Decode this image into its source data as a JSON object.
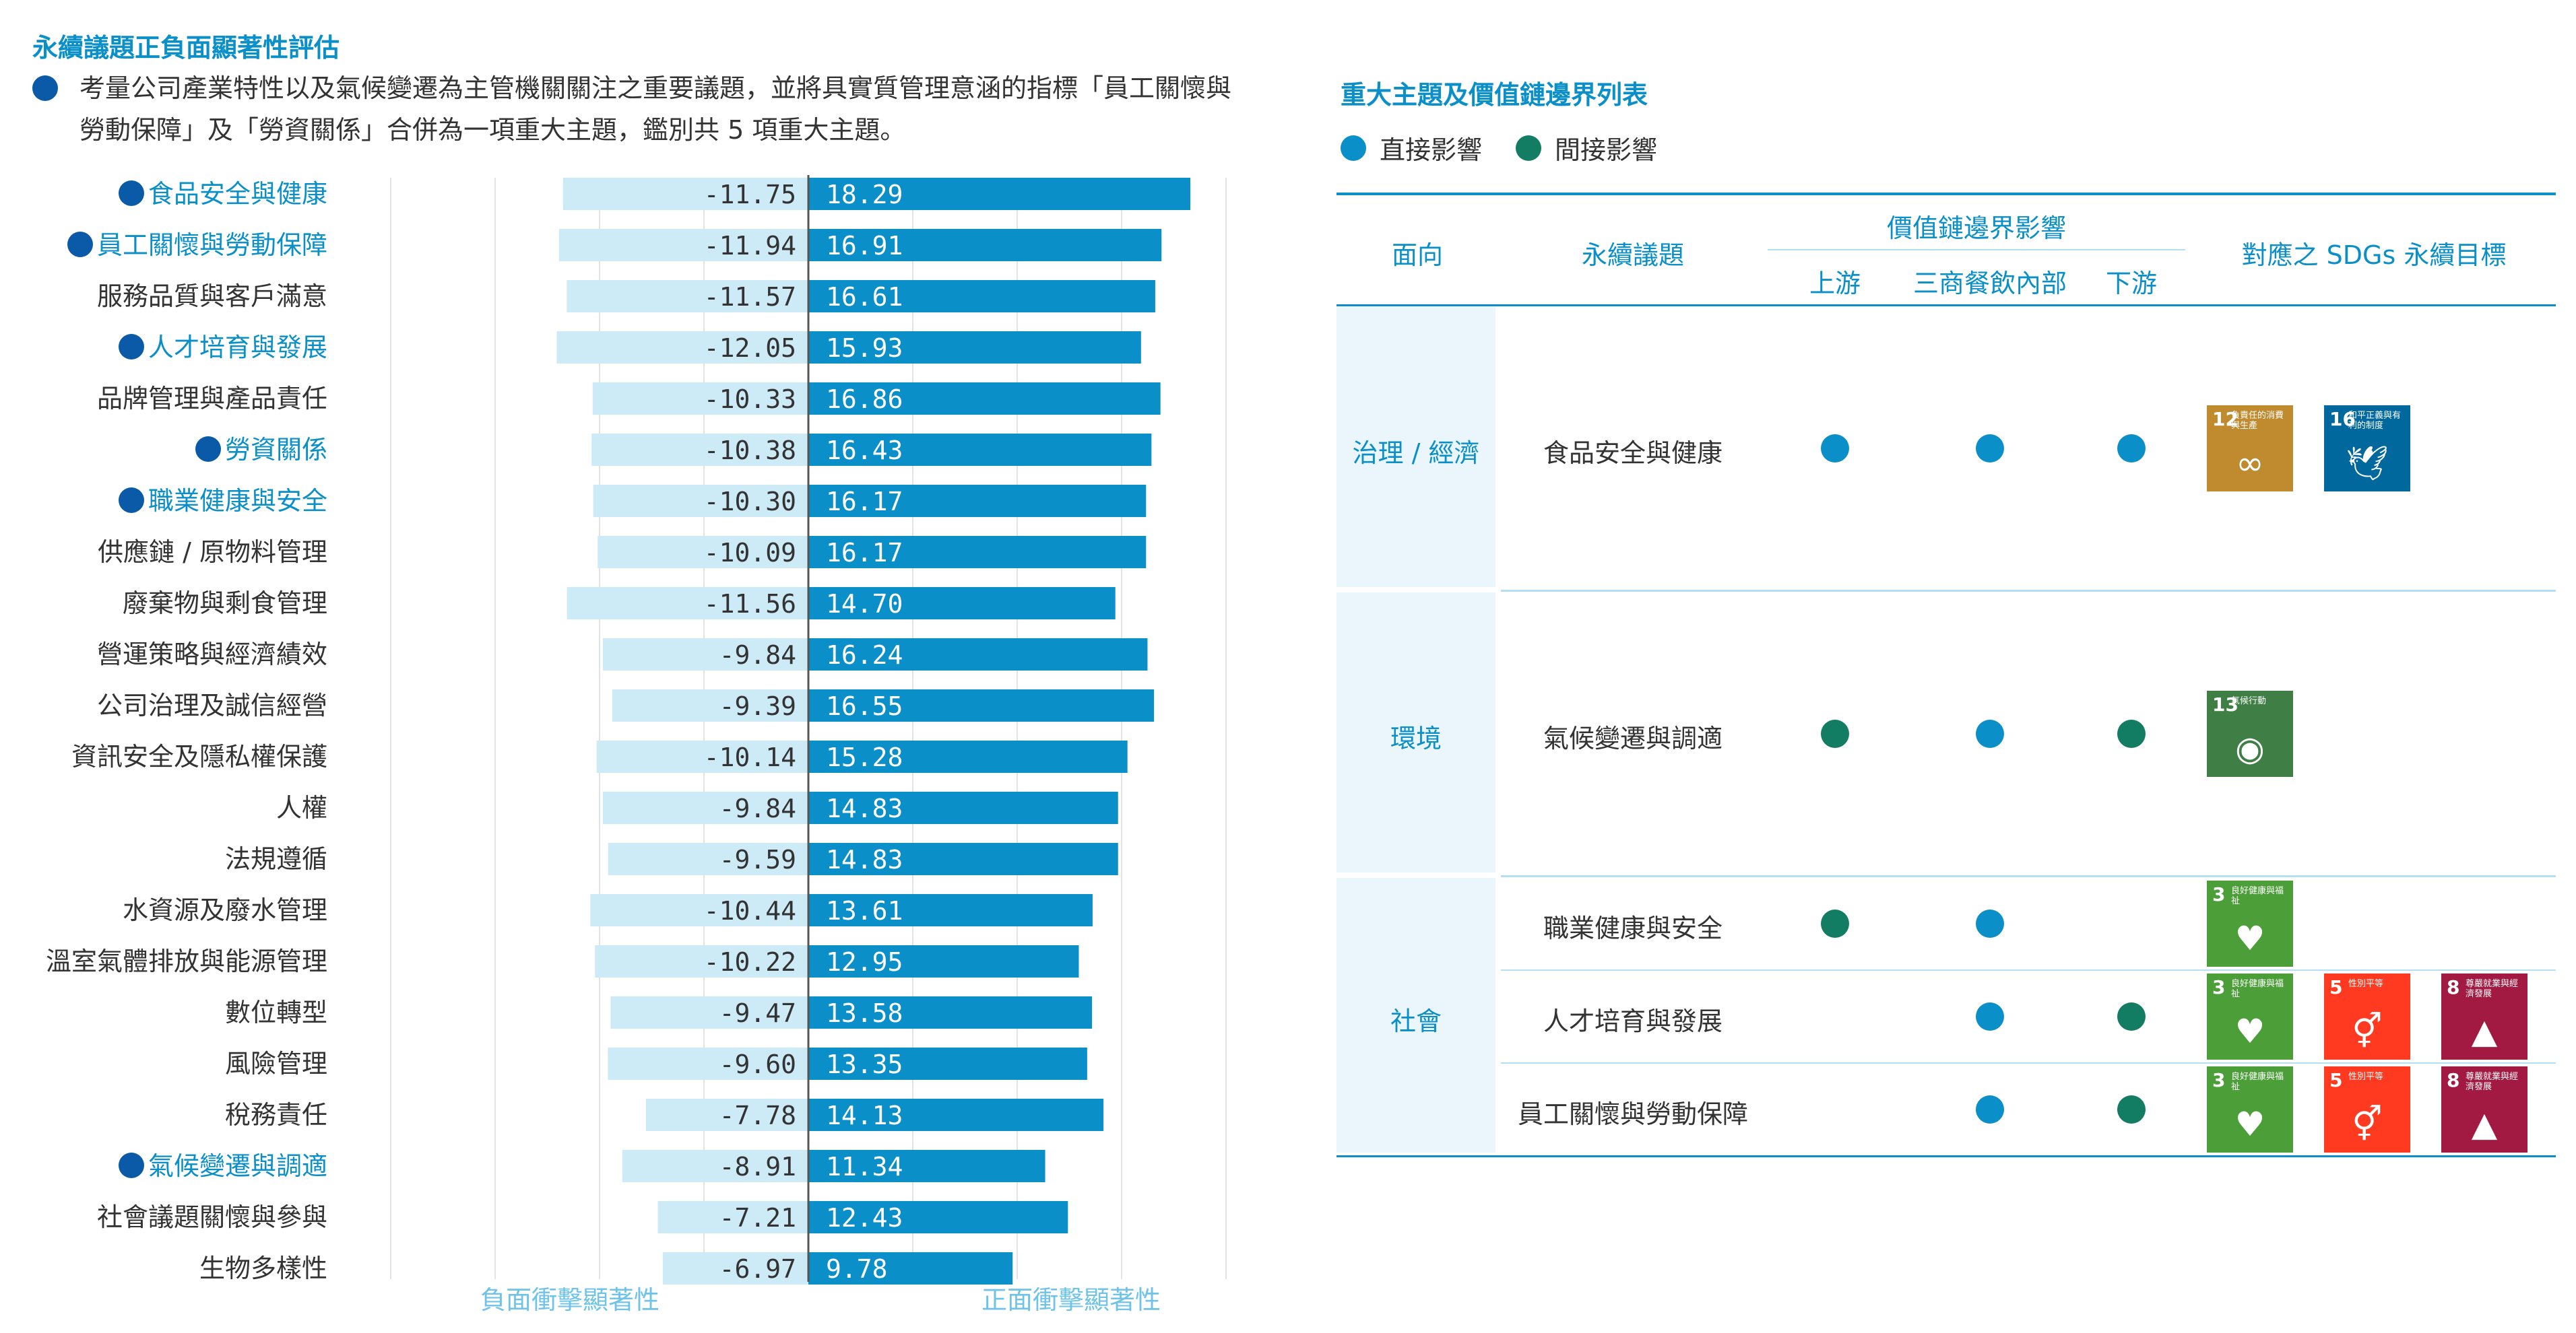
{
  "left_title": "永續議題正負面顯著性評估",
  "note": {
    "line1": "考量公司產業特性以及氣候變遷為主管機關關注之重要議題，並將具實質管理意涵的指標「員工關懷與",
    "line2": "勞動保障」及「勞資關係」合併為一項重大主題，鑑別共 5 項重大主題。"
  },
  "chart_data": {
    "type": "bar",
    "orientation": "horizontal-diverging",
    "categories": [
      "食品安全與健康",
      "員工關懷與勞動保障",
      "服務品質與客戶滿意",
      "人才培育與發展",
      "品牌管理與產品責任",
      "勞資關係",
      "職業健康與安全",
      "供應鏈 / 原物料管理",
      "廢棄物與剩食管理",
      "營運策略與經濟績效",
      "公司治理及誠信經營",
      "資訊安全及隱私權保護",
      "人權",
      "法規遵循",
      "水資源及廢水管理",
      "溫室氣體排放與能源管理",
      "數位轉型",
      "風險管理",
      "稅務責任",
      "氣候變遷與調適",
      "社會議題關懷與參與",
      "生物多樣性"
    ],
    "highlighted": [
      true,
      true,
      false,
      true,
      false,
      true,
      true,
      false,
      false,
      false,
      false,
      false,
      false,
      false,
      false,
      false,
      false,
      false,
      false,
      true,
      false,
      false
    ],
    "series": [
      {
        "name": "負面衝擊顯著性",
        "values": [
          -11.75,
          -11.94,
          -11.57,
          -12.05,
          -10.33,
          -10.38,
          -10.3,
          -10.09,
          -11.56,
          -9.84,
          -9.39,
          -10.14,
          -9.84,
          -9.59,
          -10.44,
          -10.22,
          -9.47,
          -9.6,
          -7.78,
          -8.91,
          -7.21,
          -6.97
        ]
      },
      {
        "name": "正面衝擊顯著性",
        "values": [
          18.29,
          16.91,
          16.61,
          15.93,
          16.86,
          16.43,
          16.17,
          16.17,
          14.7,
          16.24,
          16.55,
          15.28,
          14.83,
          14.83,
          13.61,
          12.95,
          13.58,
          13.35,
          14.13,
          11.34,
          12.43,
          9.78
        ]
      }
    ],
    "value_labels_negative": [
      "-11.75",
      "-11.94",
      "-11.57",
      "-12.05",
      "-10.33",
      "-10.38",
      "-10.30",
      "-10.09",
      "-11.56",
      "-9.84",
      "-9.39",
      "-10.14",
      "-9.84",
      "-9.59",
      "-10.44",
      "-10.22",
      "-9.47",
      "-9.60",
      "-7.78",
      "-8.91",
      "-7.21",
      "-6.97"
    ],
    "value_labels_positive": [
      "18.29",
      "16.91",
      "16.61",
      "15.93",
      "16.86",
      "16.43",
      "16.17",
      "16.17",
      "14.70",
      "16.24",
      "16.55",
      "15.28",
      "14.83",
      "14.83",
      "13.61",
      "12.95",
      "13.58",
      "13.35",
      "14.13",
      "11.34",
      "12.43",
      "9.78"
    ],
    "xlabel_negative": "負面衝擊顯著性",
    "xlabel_positive": "正面衝擊顯著性",
    "xlim": [
      -20,
      20
    ],
    "gridlines": [
      -20,
      -15,
      -10,
      -5,
      0,
      5,
      10,
      15,
      20
    ],
    "colors": {
      "negative": "#cdeaf7",
      "positive": "#0a8fc8",
      "highlight_text": "#0a8fc8",
      "highlight_mark": "#0a5aa8"
    }
  },
  "right_title": "重大主題及價值鏈邊界列表",
  "legend": {
    "direct": {
      "label": "直接影響",
      "color": "#0a8fc8"
    },
    "indirect": {
      "label": "間接影響",
      "color": "#127d62"
    }
  },
  "table": {
    "headers": {
      "aspect": "面向",
      "issue": "永續議題",
      "boundary": "價值鏈邊界影響",
      "upstream": "上游",
      "internal": "三商餐飲內部",
      "downstream": "下游",
      "sdgs": "對應之 SDGs 永續目標"
    },
    "groups": [
      {
        "aspect": "治理 / 經濟",
        "rows": [
          {
            "issue": "食品安全與健康",
            "upstream": "direct",
            "internal": "direct",
            "downstream": "direct",
            "sdgs": [
              {
                "num": "12",
                "caption": "負責任的消費與生產",
                "color": "#bf8b2e",
                "icon": "∞"
              },
              {
                "num": "16",
                "caption": "和平正義與有利的制度",
                "color": "#00689d",
                "icon": "🕊"
              }
            ]
          }
        ]
      },
      {
        "aspect": "環境",
        "rows": [
          {
            "issue": "氣候變遷與調適",
            "upstream": "indirect",
            "internal": "direct",
            "downstream": "indirect",
            "sdgs": [
              {
                "num": "13",
                "caption": "氣候行動",
                "color": "#3f7e44",
                "icon": "◉"
              }
            ]
          }
        ]
      },
      {
        "aspect": "社會",
        "rows": [
          {
            "issue": "職業健康與安全",
            "upstream": "indirect",
            "internal": "direct",
            "downstream": "",
            "sdgs": [
              {
                "num": "3",
                "caption": "良好健康與福祉",
                "color": "#4c9f38",
                "icon": "♥"
              }
            ]
          },
          {
            "issue": "人才培育與發展",
            "upstream": "",
            "internal": "direct",
            "downstream": "indirect",
            "sdgs": [
              {
                "num": "3",
                "caption": "良好健康與福祉",
                "color": "#4c9f38",
                "icon": "♥"
              },
              {
                "num": "5",
                "caption": "性別平等",
                "color": "#ff3a21",
                "icon": "⚥"
              },
              {
                "num": "8",
                "caption": "尊嚴就業與經濟發展",
                "color": "#a21942",
                "icon": "▲"
              }
            ]
          },
          {
            "issue": "員工關懷與勞動保障",
            "upstream": "",
            "internal": "direct",
            "downstream": "indirect",
            "sdgs": [
              {
                "num": "3",
                "caption": "良好健康與福祉",
                "color": "#4c9f38",
                "icon": "♥"
              },
              {
                "num": "5",
                "caption": "性別平等",
                "color": "#ff3a21",
                "icon": "⚥"
              },
              {
                "num": "8",
                "caption": "尊嚴就業與經濟發展",
                "color": "#a21942",
                "icon": "▲"
              }
            ]
          }
        ]
      }
    ]
  }
}
